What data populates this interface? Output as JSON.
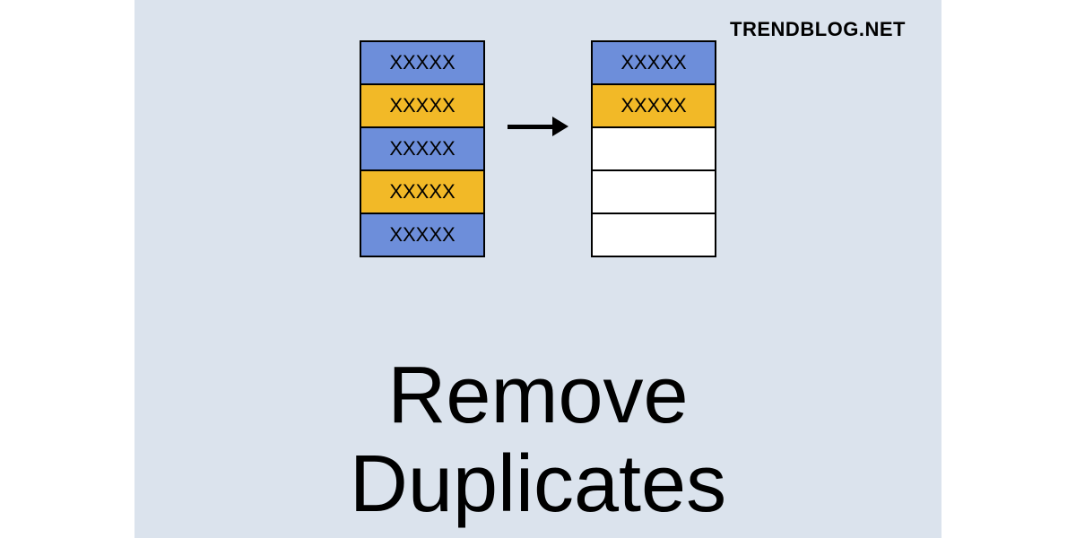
{
  "watermark": "TRENDBLOG.NET",
  "title_line1": "Remove",
  "title_line2": "Duplicates",
  "diagram": {
    "left_column": {
      "cells": [
        {
          "text": "XXXXX",
          "bg": "#6d8eda"
        },
        {
          "text": "XXXXX",
          "bg": "#f2b927"
        },
        {
          "text": "XXXXX",
          "bg": "#6d8eda"
        },
        {
          "text": "XXXXX",
          "bg": "#f2b927"
        },
        {
          "text": "XXXXX",
          "bg": "#6d8eda"
        }
      ]
    },
    "right_column": {
      "cells": [
        {
          "text": "XXXXX",
          "bg": "#6d8eda"
        },
        {
          "text": "XXXXX",
          "bg": "#f2b927"
        },
        {
          "text": "",
          "bg": "#ffffff"
        },
        {
          "text": "",
          "bg": "#ffffff"
        },
        {
          "text": "",
          "bg": "#ffffff"
        }
      ]
    }
  },
  "colors": {
    "background": "#dbe3ed",
    "blue": "#6d8eda",
    "orange": "#f2b927",
    "white": "#ffffff",
    "border": "#000000"
  }
}
